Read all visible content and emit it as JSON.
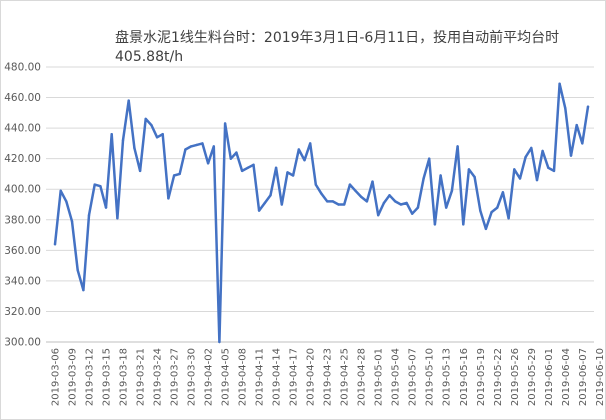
{
  "chart_data": {
    "type": "line",
    "title": "盘景水泥1线生料台时：2019年3月1日-6月11日，投用自动前平均台时",
    "subtitle": "405.88t/h",
    "xlabel": "",
    "ylabel": "",
    "ylim": [
      300,
      480
    ],
    "y_ticks": [
      "300.00",
      "320.00",
      "340.00",
      "360.00",
      "380.00",
      "400.00",
      "420.00",
      "440.00",
      "460.00",
      "480.00"
    ],
    "x_tick_labels": [
      "2019-03-06",
      "2019-03-09",
      "2019-03-12",
      "2019-03-15",
      "2019-03-18",
      "2019-03-21",
      "2019-03-24",
      "2019-03-27",
      "2019-03-30",
      "2019-04-02",
      "2019-04-05",
      "2019-04-08",
      "2019-04-11",
      "2019-04-14",
      "2019-04-17",
      "2019-04-20",
      "2019-04-23",
      "2019-04-25",
      "2019-04-28",
      "2019-05-01",
      "2019-05-04",
      "2019-05-07",
      "2019-05-10",
      "2019-05-13",
      "2019-05-16",
      "2019-05-19",
      "2019-05-22",
      "2019-05-26",
      "2019-05-29",
      "2019-06-01",
      "2019-06-04",
      "2019-06-07",
      "2019-06-10"
    ],
    "grid": "horizontal",
    "legend": "none",
    "line_color": "#4472c4",
    "series": [
      {
        "values": [
          364,
          399,
          392,
          379,
          347,
          334,
          383,
          403,
          402,
          388,
          436,
          381,
          432,
          458,
          427,
          412,
          446,
          442,
          434,
          436,
          394,
          409,
          410,
          426,
          428,
          429,
          430,
          417,
          428,
          300,
          443,
          420,
          424,
          412,
          414,
          416,
          386,
          391,
          396,
          414,
          390,
          411,
          409,
          426,
          419,
          430,
          403,
          397,
          392,
          392,
          390,
          390,
          403,
          399,
          395,
          392,
          405,
          383,
          391,
          396,
          392,
          390,
          391,
          384,
          388,
          407,
          420,
          377,
          409,
          388,
          399,
          428,
          377,
          413,
          408,
          386,
          374,
          385,
          388,
          398,
          381,
          413,
          407,
          421,
          427,
          406,
          425,
          414,
          412,
          469,
          453,
          422,
          442,
          430,
          454
        ]
      }
    ]
  }
}
